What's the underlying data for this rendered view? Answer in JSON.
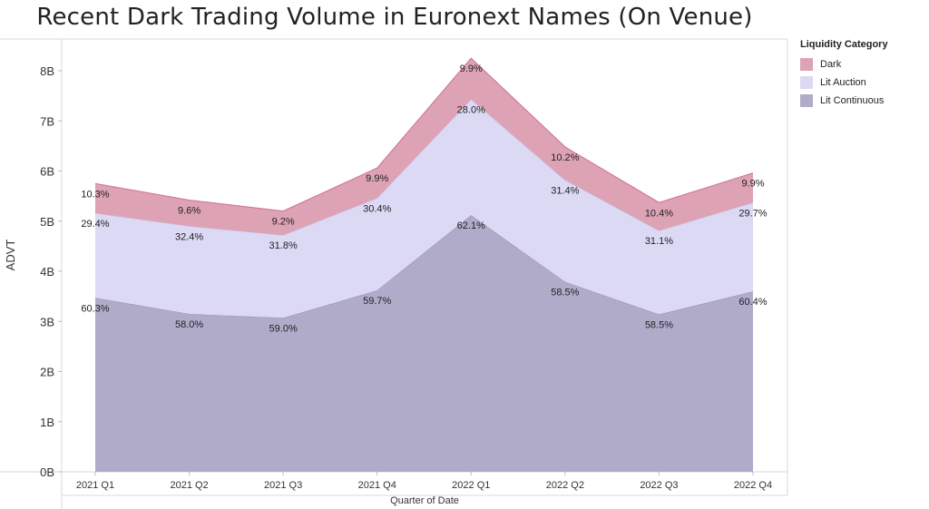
{
  "title": "Recent Dark Trading Volume in Euronext Names (On Venue)",
  "legend": {
    "title": "Liquidity Category",
    "items": [
      {
        "label": "Dark",
        "color": "#dda3b5",
        "stroke": "#d27a98"
      },
      {
        "label": "Lit Auction",
        "color": "#dcd9f4",
        "stroke": "#c9c4ee"
      },
      {
        "label": "Lit Continuous",
        "color": "#b1abca",
        "stroke": "#9c95ba"
      }
    ]
  },
  "chart_data": {
    "type": "area",
    "stacked": true,
    "xlabel": "Quarter of Date",
    "ylabel": "ADVT",
    "categories": [
      "2021 Q1",
      "2021 Q2",
      "2021 Q3",
      "2021 Q4",
      "2022 Q1",
      "2022 Q2",
      "2022 Q3",
      "2022 Q4"
    ],
    "yticks": [
      "0B",
      "1B",
      "2B",
      "3B",
      "4B",
      "5B",
      "6B",
      "7B",
      "8B"
    ],
    "ylim": [
      0,
      8.5
    ],
    "series": [
      {
        "name": "Lit Continuous",
        "values": [
          3.47,
          3.15,
          3.07,
          3.62,
          5.12,
          3.79,
          3.14,
          3.6
        ],
        "labels": [
          "60.3%",
          "58.0%",
          "59.0%",
          "59.7%",
          "62.1%",
          "58.5%",
          "58.5%",
          "60.4%"
        ]
      },
      {
        "name": "Lit Auction",
        "values": [
          1.69,
          1.75,
          1.65,
          1.84,
          2.31,
          2.03,
          1.67,
          1.77
        ],
        "labels": [
          "29.4%",
          "32.4%",
          "31.8%",
          "30.4%",
          "28.0%",
          "31.4%",
          "31.1%",
          "29.7%"
        ]
      },
      {
        "name": "Dark",
        "values": [
          0.59,
          0.52,
          0.48,
          0.6,
          0.82,
          0.66,
          0.56,
          0.59
        ],
        "labels": [
          "10.3%",
          "9.6%",
          "9.2%",
          "9.9%",
          "9.9%",
          "10.2%",
          "10.4%",
          "9.9%"
        ]
      }
    ]
  }
}
